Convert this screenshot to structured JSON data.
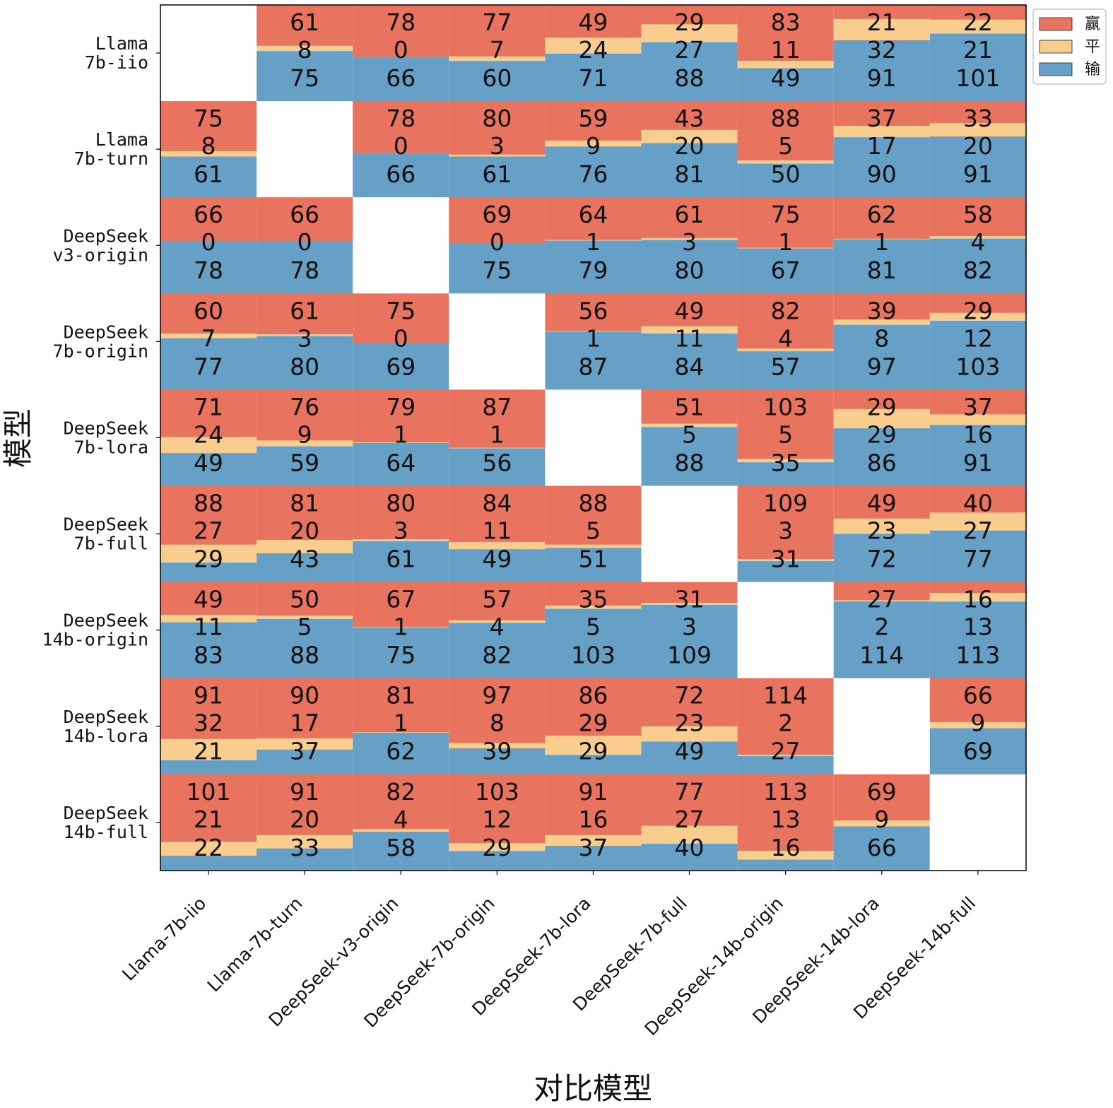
{
  "chart_data": {
    "type": "grid of stacked bars (win/tie/loss matrix)",
    "xlabel": "对比模型",
    "ylabel": "模型",
    "row_labels": [
      [
        "Llama",
        "7b-iio"
      ],
      [
        "Llama",
        "7b-turn"
      ],
      [
        "DeepSeek",
        "v3-origin"
      ],
      [
        "DeepSeek",
        "7b-origin"
      ],
      [
        "DeepSeek",
        "7b-lora"
      ],
      [
        "DeepSeek",
        "7b-full"
      ],
      [
        "DeepSeek",
        "14b-origin"
      ],
      [
        "DeepSeek",
        "14b-lora"
      ],
      [
        "DeepSeek",
        "14b-full"
      ]
    ],
    "col_labels": [
      "Llama-7b-iio",
      "Llama-7b-turn",
      "DeepSeek-v3-origin",
      "DeepSeek-7b-origin",
      "DeepSeek-7b-lora",
      "DeepSeek-7b-full",
      "DeepSeek-14b-origin",
      "DeepSeek-14b-lora",
      "DeepSeek-14b-full"
    ],
    "legend": [
      {
        "name": "赢",
        "color": "#e8735e"
      },
      {
        "name": "平",
        "color": "#f8cd8e"
      },
      {
        "name": "输",
        "color": "#66a0c6"
      }
    ],
    "legend_position": "top-right outside",
    "cells": [
      [
        null,
        [
          61,
          8,
          75
        ],
        [
          78,
          0,
          66
        ],
        [
          77,
          7,
          60
        ],
        [
          49,
          24,
          71
        ],
        [
          29,
          27,
          88
        ],
        [
          83,
          11,
          49
        ],
        [
          21,
          32,
          91
        ],
        [
          22,
          21,
          101
        ]
      ],
      [
        [
          75,
          8,
          61
        ],
        null,
        [
          78,
          0,
          66
        ],
        [
          80,
          3,
          61
        ],
        [
          59,
          9,
          76
        ],
        [
          43,
          20,
          81
        ],
        [
          88,
          5,
          50
        ],
        [
          37,
          17,
          90
        ],
        [
          33,
          20,
          91
        ]
      ],
      [
        [
          66,
          0,
          78
        ],
        [
          66,
          0,
          78
        ],
        null,
        [
          69,
          0,
          75
        ],
        [
          64,
          1,
          79
        ],
        [
          61,
          3,
          80
        ],
        [
          75,
          1,
          67
        ],
        [
          62,
          1,
          81
        ],
        [
          58,
          4,
          82
        ]
      ],
      [
        [
          60,
          7,
          77
        ],
        [
          61,
          3,
          80
        ],
        [
          75,
          0,
          69
        ],
        null,
        [
          56,
          1,
          87
        ],
        [
          49,
          11,
          84
        ],
        [
          82,
          4,
          57
        ],
        [
          39,
          8,
          97
        ],
        [
          29,
          12,
          103
        ]
      ],
      [
        [
          71,
          24,
          49
        ],
        [
          76,
          9,
          59
        ],
        [
          79,
          1,
          64
        ],
        [
          87,
          1,
          56
        ],
        null,
        [
          51,
          5,
          88
        ],
        [
          103,
          5,
          35
        ],
        [
          29,
          29,
          86
        ],
        [
          37,
          16,
          91
        ]
      ],
      [
        [
          88,
          27,
          29
        ],
        [
          81,
          20,
          43
        ],
        [
          80,
          3,
          61
        ],
        [
          84,
          11,
          49
        ],
        [
          88,
          5,
          51
        ],
        null,
        [
          109,
          3,
          31
        ],
        [
          49,
          23,
          72
        ],
        [
          40,
          27,
          77
        ]
      ],
      [
        [
          49,
          11,
          83
        ],
        [
          50,
          5,
          88
        ],
        [
          67,
          1,
          75
        ],
        [
          57,
          4,
          82
        ],
        [
          35,
          5,
          103
        ],
        [
          31,
          3,
          109
        ],
        null,
        [
          27,
          2,
          114
        ],
        [
          16,
          13,
          113
        ]
      ],
      [
        [
          91,
          32,
          21
        ],
        [
          90,
          17,
          37
        ],
        [
          81,
          1,
          62
        ],
        [
          97,
          8,
          39
        ],
        [
          86,
          29,
          29
        ],
        [
          72,
          23,
          49
        ],
        [
          114,
          2,
          27
        ],
        null,
        [
          66,
          9,
          69
        ]
      ],
      [
        [
          101,
          21,
          22
        ],
        [
          91,
          20,
          33
        ],
        [
          82,
          4,
          58
        ],
        [
          103,
          12,
          29
        ],
        [
          91,
          16,
          37
        ],
        [
          77,
          27,
          40
        ],
        [
          113,
          13,
          16
        ],
        [
          69,
          9,
          66
        ],
        null
      ]
    ]
  }
}
